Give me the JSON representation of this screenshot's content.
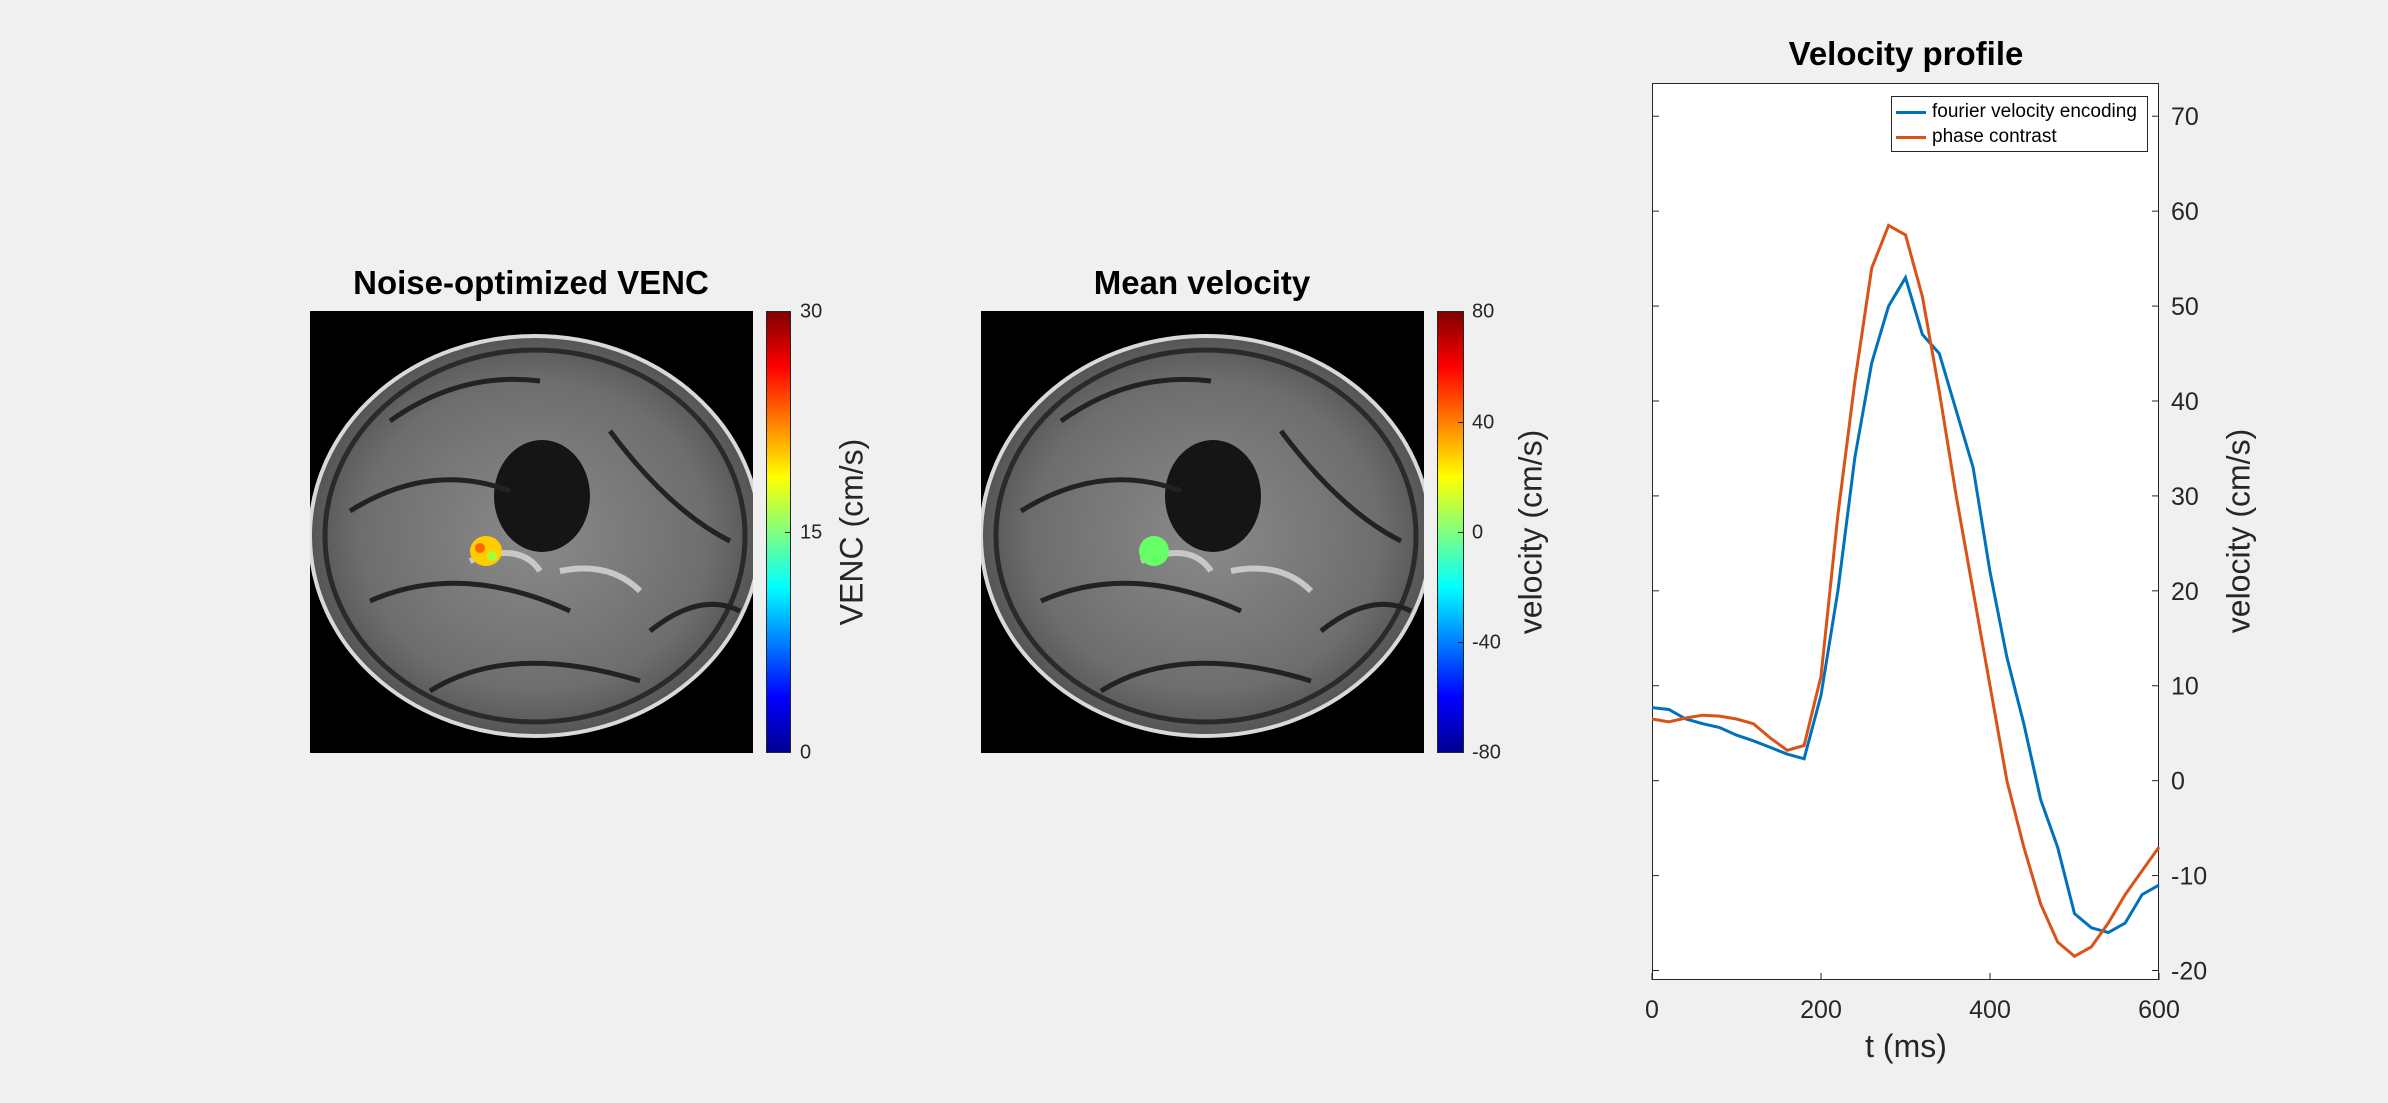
{
  "panels": [
    {
      "title": "Noise-optimized VENC",
      "colorbar_label": "VENC (cm/s)",
      "colorbar_ticks": [
        "30",
        "15",
        "0"
      ],
      "colormap": "jet"
    },
    {
      "title": "Mean velocity",
      "colorbar_label": "velocity (cm/s)",
      "colorbar_ticks": [
        "80",
        "40",
        "0",
        "-40",
        "-80"
      ],
      "colormap": "jet"
    }
  ],
  "chart_data": {
    "type": "line",
    "title": "Velocity profile",
    "xlabel": "t (ms)",
    "ylabel": "velocity (cm/s)",
    "xlim": [
      0,
      600
    ],
    "ylim": [
      -20,
      75
    ],
    "xticks": [
      "0",
      "200",
      "400",
      "600"
    ],
    "yticks": [
      "70",
      "60",
      "50",
      "40",
      "30",
      "20",
      "10",
      "0",
      "-10",
      "-20"
    ],
    "yaxis_location": "right",
    "legend_position": "top-right",
    "grid": false,
    "series": [
      {
        "name": "fourier velocity encoding",
        "color": "#0072bd",
        "x": [
          0,
          20,
          40,
          60,
          80,
          100,
          120,
          140,
          160,
          180,
          200,
          220,
          240,
          260,
          280,
          300,
          320,
          340,
          360,
          380,
          400,
          420,
          440,
          460,
          480,
          500,
          520,
          540,
          560,
          580,
          600
        ],
        "y": [
          7.7,
          7.5,
          6.5,
          6.0,
          5.6,
          4.8,
          4.2,
          3.5,
          2.8,
          2.3,
          9.0,
          20.0,
          34.0,
          44.0,
          50.0,
          53.0,
          47.0,
          45.0,
          39.0,
          33.0,
          22.0,
          13.0,
          6.0,
          -2.0,
          -7.0,
          -14.0,
          -15.5,
          -16.0,
          -15.0,
          -12.0,
          -11.0
        ]
      },
      {
        "name": "phase contrast",
        "color": "#d95319",
        "x": [
          0,
          20,
          40,
          60,
          80,
          100,
          120,
          140,
          160,
          180,
          200,
          220,
          240,
          260,
          280,
          300,
          320,
          340,
          360,
          380,
          400,
          420,
          440,
          460,
          480,
          500,
          520,
          540,
          560,
          580,
          600
        ],
        "y": [
          6.5,
          6.2,
          6.6,
          6.9,
          6.8,
          6.5,
          6.0,
          4.5,
          3.2,
          3.7,
          11.0,
          28.0,
          42.0,
          54.0,
          58.5,
          57.5,
          51.0,
          41.0,
          30.0,
          20.0,
          10.0,
          0.0,
          -7.0,
          -13.0,
          -17.0,
          -18.5,
          -17.5,
          -15.0,
          -12.0,
          -9.5,
          -7.0
        ]
      }
    ]
  }
}
